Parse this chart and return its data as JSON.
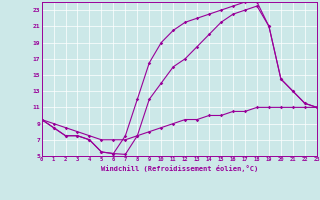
{
  "xlabel": "Windchill (Refroidissement éolien,°C)",
  "bg_color": "#cce8e8",
  "line_color": "#990099",
  "xlim": [
    0,
    23
  ],
  "ylim": [
    5,
    24
  ],
  "xticks": [
    0,
    1,
    2,
    3,
    4,
    5,
    6,
    7,
    8,
    9,
    10,
    11,
    12,
    13,
    14,
    15,
    16,
    17,
    18,
    19,
    20,
    21,
    22,
    23
  ],
  "yticks": [
    5,
    7,
    9,
    11,
    13,
    15,
    17,
    19,
    21,
    23
  ],
  "series1_x": [
    0,
    1,
    2,
    3,
    4,
    5,
    6,
    7,
    8,
    9,
    10,
    11,
    12,
    13,
    14,
    15,
    16,
    17,
    18,
    19,
    20,
    21,
    22,
    23
  ],
  "series1_y": [
    9.5,
    8.5,
    7.5,
    7.5,
    7.0,
    5.5,
    5.3,
    5.2,
    7.5,
    12.0,
    14.0,
    16.0,
    17.0,
    18.5,
    20.0,
    21.5,
    22.5,
    23.0,
    23.5,
    21.0,
    14.5,
    13.0,
    11.5,
    11.0
  ],
  "series2_x": [
    0,
    1,
    2,
    3,
    4,
    5,
    6,
    7,
    8,
    9,
    10,
    11,
    12,
    13,
    14,
    15,
    16,
    17,
    18,
    19,
    20,
    21,
    22,
    23
  ],
  "series2_y": [
    9.5,
    8.5,
    7.5,
    7.5,
    7.0,
    5.5,
    5.3,
    7.5,
    12.0,
    16.5,
    19.0,
    20.5,
    21.5,
    22.0,
    22.5,
    23.0,
    23.5,
    24.0,
    24.0,
    21.0,
    14.5,
    13.0,
    11.5,
    11.0
  ],
  "series3_x": [
    0,
    1,
    2,
    3,
    4,
    5,
    6,
    7,
    8,
    9,
    10,
    11,
    12,
    13,
    14,
    15,
    16,
    17,
    18,
    19,
    20,
    21,
    22,
    23
  ],
  "series3_y": [
    9.5,
    9.0,
    8.5,
    8.0,
    7.5,
    7.0,
    7.0,
    7.0,
    7.5,
    8.0,
    8.5,
    9.0,
    9.5,
    9.5,
    10.0,
    10.0,
    10.5,
    10.5,
    11.0,
    11.0,
    11.0,
    11.0,
    11.0,
    11.0
  ]
}
